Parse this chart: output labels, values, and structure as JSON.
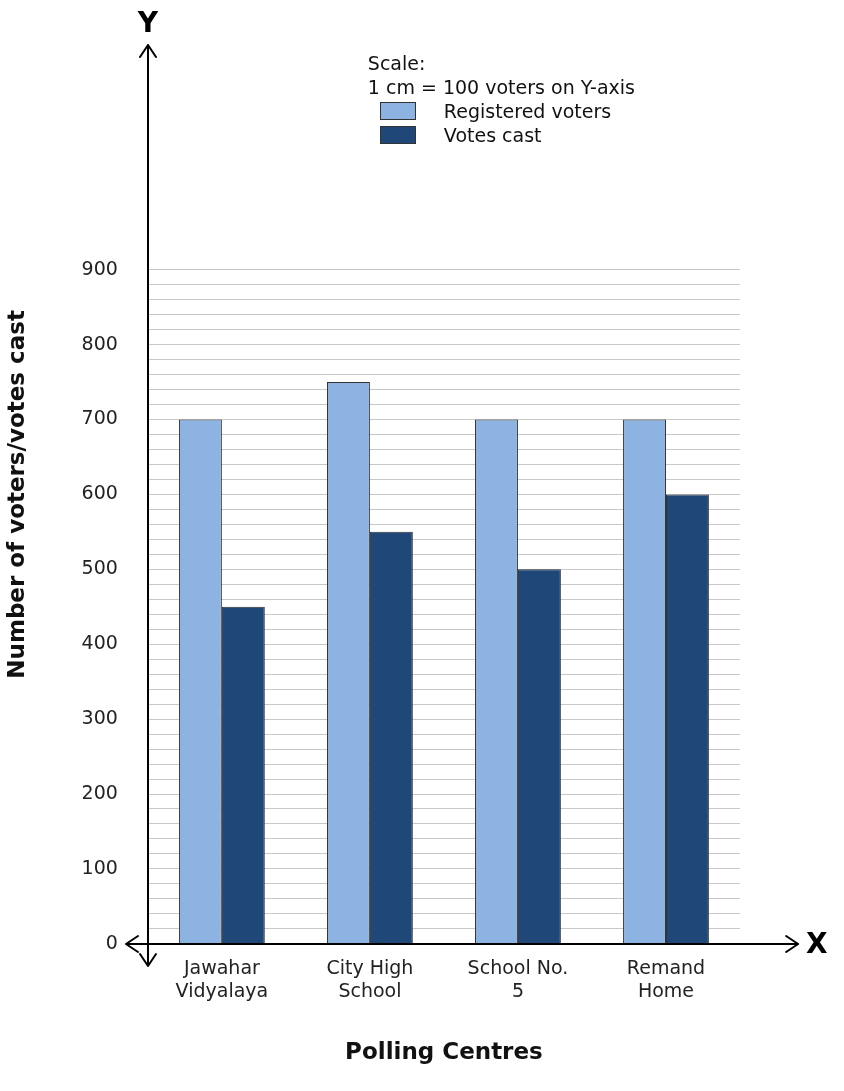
{
  "chart_data": {
    "type": "bar",
    "xlabel": "Polling Centres",
    "ylabel": "Number of voters/votes cast",
    "categories": [
      "Jawahar\nVidyalaya",
      "City High\nSchool",
      "School No.\n5",
      "Remand\nHome"
    ],
    "series": [
      {
        "name": "Registered voters",
        "color": "#8db3e2",
        "values": [
          700,
          750,
          700,
          700
        ]
      },
      {
        "name": "Votes cast",
        "color": "#1f4778",
        "values": [
          450,
          550,
          500,
          600
        ]
      }
    ],
    "ylim": [
      0,
      1200
    ],
    "yticks": [
      0,
      {
        "value": 20,
        "label": null
      },
      {
        "value": 40,
        "label": null
      },
      {
        "value": 60,
        "label": null
      },
      {
        "value": 80,
        "label": null
      },
      100,
      {
        "value": 120,
        "label": null
      },
      {
        "value": 140,
        "label": null
      },
      {
        "value": 160,
        "label": null
      },
      {
        "value": 180,
        "label": null
      },
      200,
      {
        "value": 220,
        "label": null
      },
      {
        "value": 240,
        "label": null
      },
      {
        "value": 260,
        "label": null
      },
      {
        "value": 280,
        "label": null
      },
      300,
      {
        "value": 320,
        "label": null
      },
      {
        "value": 340,
        "label": null
      },
      {
        "value": 360,
        "label": null
      },
      {
        "value": 380,
        "label": null
      },
      400,
      {
        "value": 420,
        "label": null
      },
      {
        "value": 440,
        "label": null
      },
      {
        "value": 460,
        "label": null
      },
      {
        "value": 480,
        "label": null
      },
      500,
      {
        "value": 520,
        "label": null
      },
      {
        "value": 540,
        "label": null
      },
      {
        "value": 560,
        "label": null
      },
      {
        "value": 580,
        "label": null
      },
      600,
      {
        "value": 620,
        "label": null
      },
      {
        "value": 640,
        "label": null
      },
      {
        "value": 660,
        "label": null
      },
      {
        "value": 680,
        "label": null
      },
      700,
      {
        "value": 720,
        "label": null
      },
      {
        "value": 740,
        "label": null
      },
      {
        "value": 760,
        "label": null
      },
      {
        "value": 780,
        "label": null
      },
      800,
      {
        "value": 820,
        "label": null
      },
      {
        "value": 840,
        "label": null
      },
      {
        "value": 860,
        "label": null
      },
      {
        "value": 880,
        "label": null
      },
      900
    ],
    "grid": "y",
    "legend": "top right",
    "annotations": [
      "Scale:",
      "1 cm =  100 voters on Y-axis",
      "Y",
      "X"
    ]
  }
}
